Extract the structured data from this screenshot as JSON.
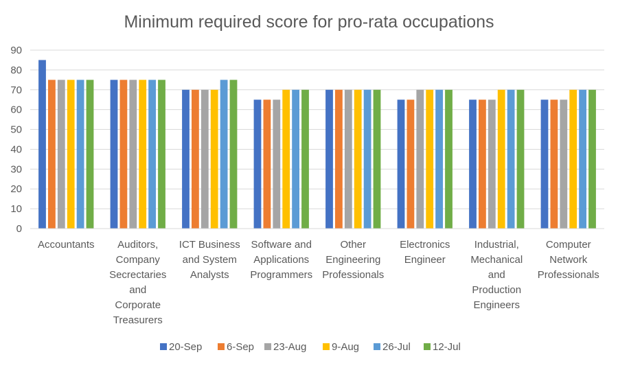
{
  "chart_data": {
    "type": "bar",
    "title": "Minimum required score for pro-rata occupations",
    "xlabel": "",
    "ylabel": "",
    "ylim": [
      0,
      90
    ],
    "yticks": [
      0,
      10,
      20,
      30,
      40,
      50,
      60,
      70,
      80,
      90
    ],
    "grid": true,
    "legend_position": "bottom",
    "categories": [
      "Accountants",
      "Auditors, Company Secrectaries and Corporate Treasurers",
      "ICT Business and System Analysts",
      "Software and Applications Programmers",
      "Other Engineering Professionals",
      "Electronics Engineer",
      "Industrial, Mechanical and Production Engineers",
      "Computer Network Professionals"
    ],
    "category_label_lines": [
      [
        "Accountants"
      ],
      [
        "Auditors,",
        "Company",
        "Secrectaries",
        "and",
        "Corporate",
        "Treasurers"
      ],
      [
        "ICT Business",
        "and System",
        "Analysts"
      ],
      [
        "Software and",
        "Applications",
        "Programmers"
      ],
      [
        "Other",
        "Engineering",
        "Professionals"
      ],
      [
        "Electronics",
        "Engineer"
      ],
      [
        "Industrial,",
        "Mechanical",
        "and",
        "Production",
        "Engineers"
      ],
      [
        "Computer",
        "Network",
        "Professionals"
      ]
    ],
    "series": [
      {
        "name": "20-Sep",
        "color": "#4472C4",
        "values": [
          85,
          75,
          70,
          65,
          70,
          65,
          65,
          65
        ]
      },
      {
        "name": "6-Sep",
        "color": "#ED7D31",
        "values": [
          75,
          75,
          70,
          65,
          70,
          65,
          65,
          65
        ]
      },
      {
        "name": "23-Aug",
        "color": "#A5A5A5",
        "values": [
          75,
          75,
          70,
          65,
          70,
          70,
          65,
          65
        ]
      },
      {
        "name": "9-Aug",
        "color": "#FFC000",
        "values": [
          75,
          75,
          70,
          70,
          70,
          70,
          70,
          70
        ]
      },
      {
        "name": "26-Jul",
        "color": "#5B9BD5",
        "values": [
          75,
          75,
          75,
          70,
          70,
          70,
          70,
          70
        ]
      },
      {
        "name": "12-Jul",
        "color": "#70AD47",
        "values": [
          75,
          75,
          75,
          70,
          70,
          70,
          70,
          70
        ]
      }
    ]
  }
}
